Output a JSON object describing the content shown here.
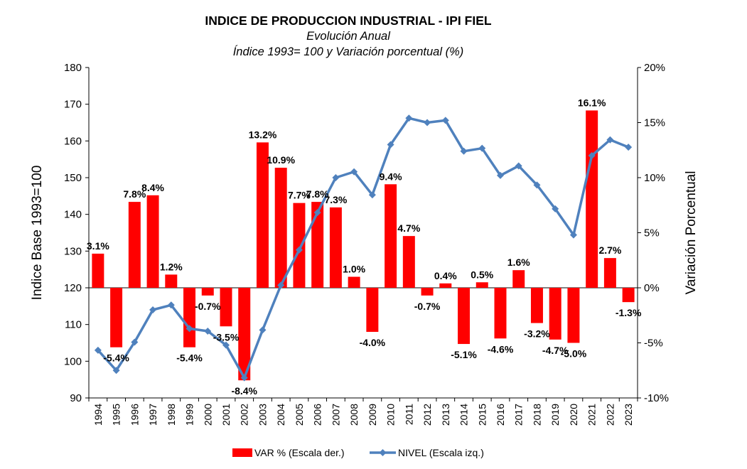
{
  "chart_data": {
    "type": "bar+line",
    "title": "INDICE DE PRODUCCION INDUSTRIAL - IPI FIEL",
    "subtitle": "Evolución Anual",
    "subtitle2": "Índice 1993= 100 y Variación porcentual (%)",
    "ylabel_left": "Indice Base 1993=100",
    "ylabel_right": "Variación Porcentual",
    "ylim_left": [
      90,
      180
    ],
    "ylim_right": [
      -10,
      20
    ],
    "yticks_left": [
      "90",
      "100",
      "110",
      "120",
      "130",
      "140",
      "150",
      "160",
      "170",
      "180"
    ],
    "yticks_right": [
      "-10%",
      "-5%",
      "0%",
      "5%",
      "10%",
      "15%",
      "20%"
    ],
    "categories": [
      "1994",
      "1995",
      "1996",
      "1997",
      "1998",
      "1999",
      "2000",
      "2001",
      "2002",
      "2003",
      "2004",
      "2005",
      "2006",
      "2007",
      "2008",
      "2009",
      "2010",
      "2011",
      "2012",
      "2013",
      "2014",
      "2015",
      "2016",
      "2017",
      "2018",
      "2019",
      "2020",
      "2021",
      "2022",
      "2023"
    ],
    "series": [
      {
        "name": "VAR % (Escala der.)",
        "type": "bar",
        "axis": "right",
        "color": "#ff0000",
        "values": [
          3.1,
          -5.4,
          7.8,
          8.4,
          1.2,
          -5.4,
          -0.7,
          -3.5,
          -8.4,
          13.2,
          10.9,
          7.7,
          7.8,
          7.3,
          1.0,
          -4.0,
          9.4,
          4.7,
          -0.7,
          0.4,
          -5.1,
          0.5,
          -4.6,
          1.6,
          -3.2,
          -4.7,
          -5.0,
          16.1,
          2.7,
          -1.3
        ],
        "labels": [
          "3.1%",
          "-5.4%",
          "7.8%",
          "8.4%",
          "1.2%",
          "-5.4%",
          "-0.7%",
          "-3.5%",
          "-8.4%",
          "13.2%",
          "10.9%",
          "7.7%",
          "7.8%",
          "7.3%",
          "1.0%",
          "-4.0%",
          "9.4%",
          "4.7%",
          "-0.7%",
          "0.4%",
          "-5.1%",
          "0.5%",
          "-4.6%",
          "1.6%",
          "-3.2%",
          "-4.7%",
          "-5.0%",
          "16.1%",
          "2.7%",
          "-1.3%"
        ]
      },
      {
        "name": "NIVEL (Escala izq.)",
        "type": "line",
        "axis": "left",
        "color": "#4f81bd",
        "values": [
          103,
          97.5,
          105.2,
          114,
          115.3,
          108.9,
          108.2,
          104.4,
          95.5,
          108.5,
          120.7,
          130.3,
          140.5,
          150,
          151.6,
          145.3,
          159,
          166.2,
          165,
          165.6,
          157.2,
          158,
          150.6,
          153.2,
          148,
          141.5,
          134.4,
          156,
          160.3,
          158.3
        ]
      }
    ],
    "legend_position": "bottom",
    "grid": false
  }
}
